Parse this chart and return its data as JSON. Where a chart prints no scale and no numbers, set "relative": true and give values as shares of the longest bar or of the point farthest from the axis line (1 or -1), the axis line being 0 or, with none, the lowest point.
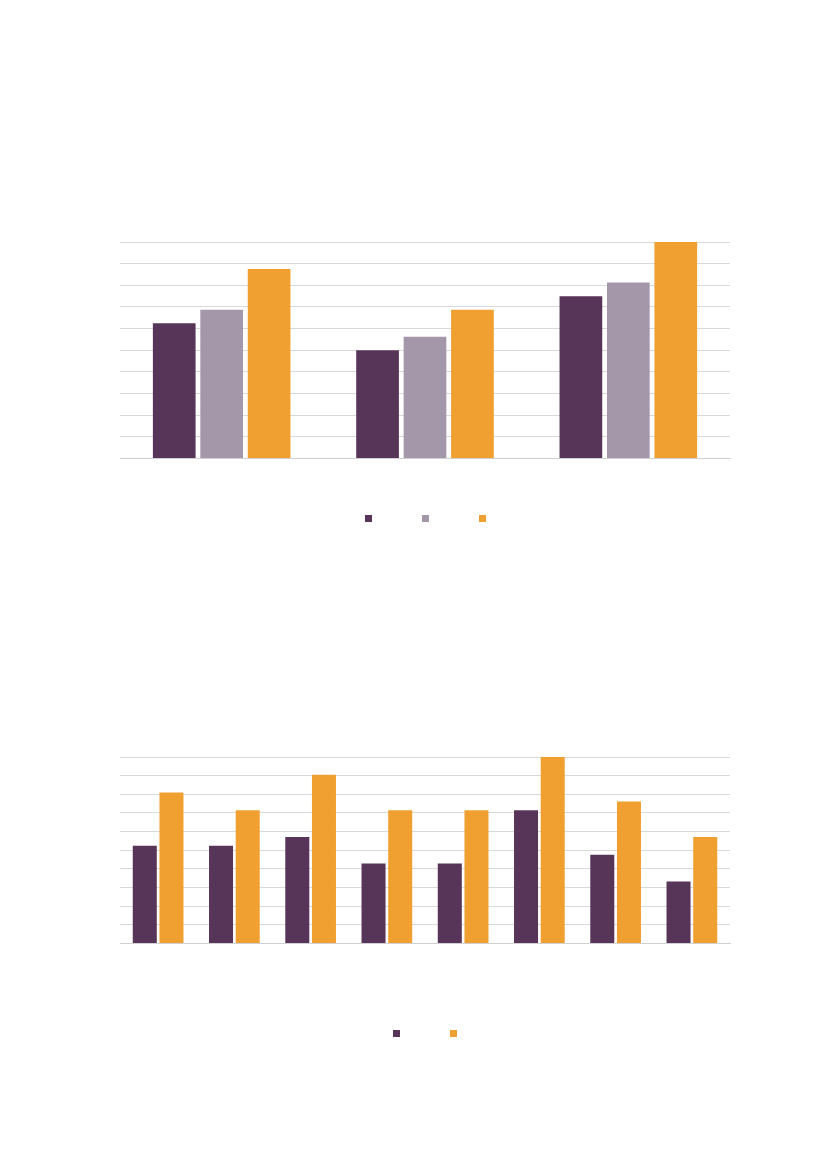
{
  "chart_data": [
    {
      "type": "bar",
      "relative": true,
      "grid": true,
      "categories": [
        null,
        null,
        null
      ],
      "series": [
        {
          "color": "#573558",
          "values": [
            0.625,
            0.5,
            0.75
          ]
        },
        {
          "color": "#a597aa",
          "values": [
            0.6875,
            0.5625,
            0.8125
          ]
        },
        {
          "color": "#f0a030",
          "values": [
            0.875,
            0.6875,
            1
          ]
        }
      ]
    },
    {
      "type": "bar",
      "relative": true,
      "grid": true,
      "categories": [
        null,
        null,
        null,
        null,
        null,
        null,
        null,
        null
      ],
      "series": [
        {
          "color": "#573558",
          "values": [
            0.524,
            0.524,
            0.571,
            0.429,
            0.429,
            0.714,
            0.476,
            0.333
          ]
        },
        {
          "color": "#f0a030",
          "values": [
            0.81,
            0.714,
            0.905,
            0.714,
            0.714,
            1,
            0.762,
            0.571
          ]
        }
      ]
    }
  ]
}
